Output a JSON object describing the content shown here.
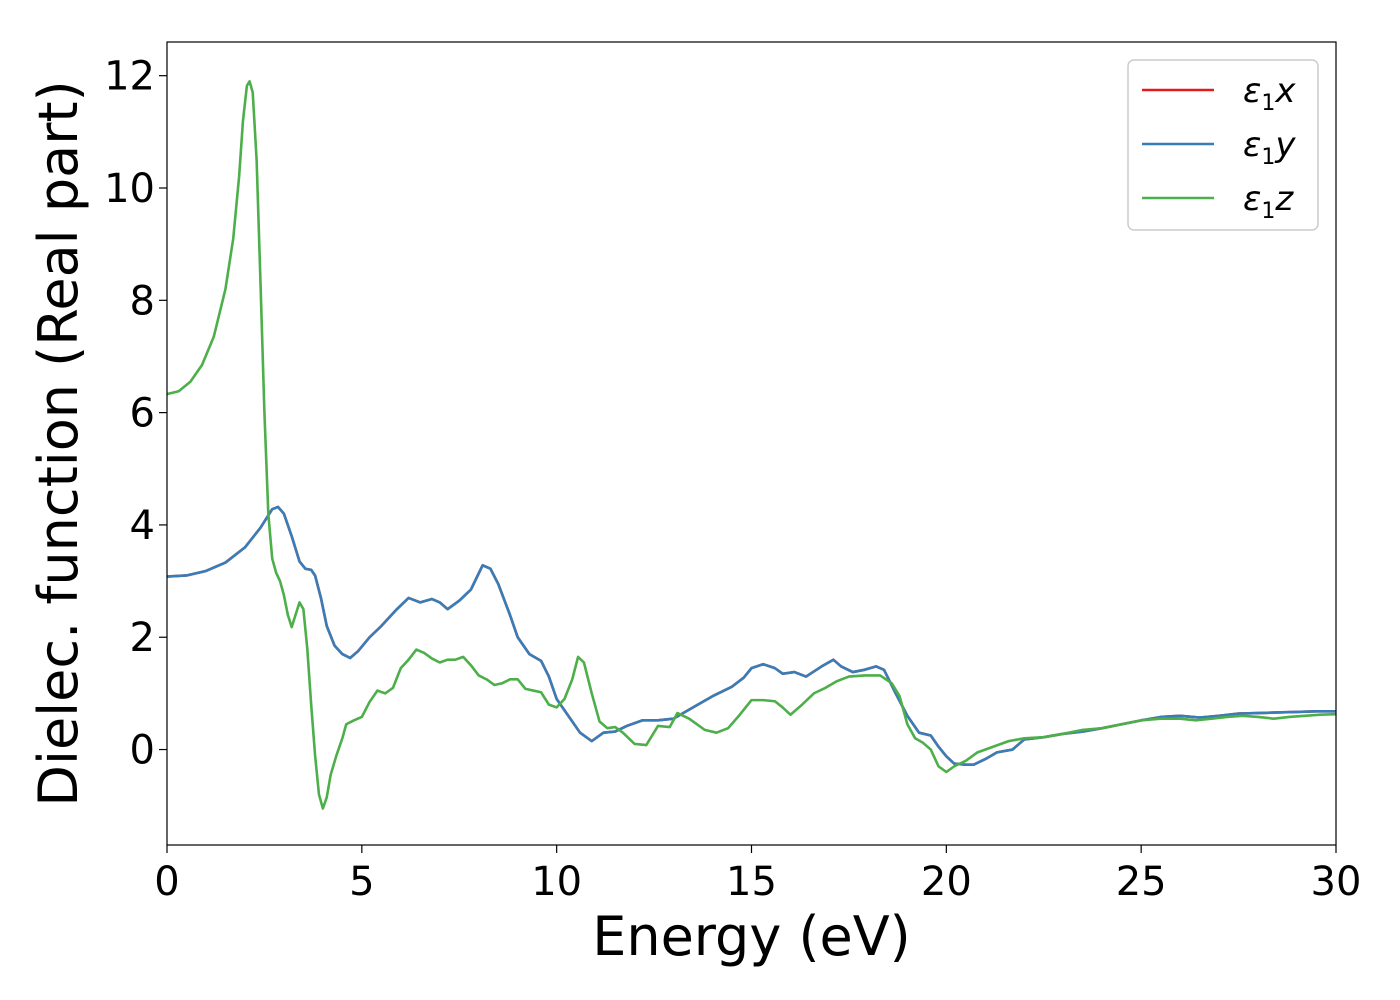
{
  "chart_data": {
    "type": "line",
    "xlabel": "Energy (eV)",
    "ylabel": "Dielec. function (Real part)",
    "xlim": [
      0,
      30
    ],
    "ylim": [
      -1.7,
      12.6
    ],
    "xticks": [
      0,
      5,
      10,
      15,
      20,
      25,
      30
    ],
    "yticks": [
      0,
      2,
      4,
      6,
      8,
      10,
      12
    ],
    "grid": false,
    "legend_position": "top-right",
    "colors": {
      "x": "#e41a1c",
      "y": "#377eb8",
      "z": "#4daf4a"
    },
    "series": [
      {
        "key": "x",
        "name": "ε1x",
        "legend_base": "ε",
        "legend_sub": "1",
        "legend_var": "x",
        "ref": "y"
      },
      {
        "key": "y",
        "name": "ε1y",
        "legend_base": "ε",
        "legend_sub": "1",
        "legend_var": "y",
        "points": [
          [
            0,
            3.08
          ],
          [
            0.5,
            3.1
          ],
          [
            1.0,
            3.18
          ],
          [
            1.5,
            3.33
          ],
          [
            2.0,
            3.6
          ],
          [
            2.4,
            3.95
          ],
          [
            2.7,
            4.28
          ],
          [
            2.85,
            4.32
          ],
          [
            3.0,
            4.2
          ],
          [
            3.2,
            3.8
          ],
          [
            3.4,
            3.35
          ],
          [
            3.55,
            3.22
          ],
          [
            3.7,
            3.2
          ],
          [
            3.8,
            3.1
          ],
          [
            3.95,
            2.7
          ],
          [
            4.1,
            2.2
          ],
          [
            4.3,
            1.85
          ],
          [
            4.5,
            1.7
          ],
          [
            4.7,
            1.63
          ],
          [
            4.9,
            1.75
          ],
          [
            5.2,
            2.0
          ],
          [
            5.5,
            2.2
          ],
          [
            5.9,
            2.5
          ],
          [
            6.2,
            2.7
          ],
          [
            6.5,
            2.62
          ],
          [
            6.8,
            2.68
          ],
          [
            7.0,
            2.62
          ],
          [
            7.2,
            2.5
          ],
          [
            7.5,
            2.65
          ],
          [
            7.8,
            2.85
          ],
          [
            8.1,
            3.28
          ],
          [
            8.3,
            3.22
          ],
          [
            8.5,
            2.95
          ],
          [
            8.8,
            2.4
          ],
          [
            9.0,
            2.0
          ],
          [
            9.3,
            1.7
          ],
          [
            9.6,
            1.58
          ],
          [
            9.8,
            1.3
          ],
          [
            10.0,
            0.9
          ],
          [
            10.3,
            0.6
          ],
          [
            10.6,
            0.3
          ],
          [
            10.9,
            0.15
          ],
          [
            11.2,
            0.3
          ],
          [
            11.5,
            0.32
          ],
          [
            11.8,
            0.42
          ],
          [
            12.2,
            0.52
          ],
          [
            12.6,
            0.52
          ],
          [
            13.0,
            0.55
          ],
          [
            13.5,
            0.75
          ],
          [
            14.0,
            0.95
          ],
          [
            14.5,
            1.12
          ],
          [
            14.8,
            1.28
          ],
          [
            15.0,
            1.45
          ],
          [
            15.3,
            1.52
          ],
          [
            15.6,
            1.45
          ],
          [
            15.8,
            1.35
          ],
          [
            16.1,
            1.38
          ],
          [
            16.4,
            1.3
          ],
          [
            16.8,
            1.48
          ],
          [
            17.1,
            1.6
          ],
          [
            17.3,
            1.48
          ],
          [
            17.6,
            1.38
          ],
          [
            17.9,
            1.42
          ],
          [
            18.2,
            1.48
          ],
          [
            18.4,
            1.42
          ],
          [
            18.7,
            1.0
          ],
          [
            19.0,
            0.6
          ],
          [
            19.3,
            0.3
          ],
          [
            19.6,
            0.25
          ],
          [
            19.8,
            0.05
          ],
          [
            20.0,
            -0.12
          ],
          [
            20.2,
            -0.25
          ],
          [
            20.5,
            -0.27
          ],
          [
            20.7,
            -0.27
          ],
          [
            21.0,
            -0.17
          ],
          [
            21.3,
            -0.05
          ],
          [
            21.7,
            0.0
          ],
          [
            22.0,
            0.18
          ],
          [
            22.5,
            0.22
          ],
          [
            23.0,
            0.28
          ],
          [
            23.5,
            0.32
          ],
          [
            24.0,
            0.38
          ],
          [
            24.5,
            0.45
          ],
          [
            25.0,
            0.52
          ],
          [
            25.5,
            0.58
          ],
          [
            26.0,
            0.6
          ],
          [
            26.5,
            0.57
          ],
          [
            27.0,
            0.6
          ],
          [
            27.5,
            0.64
          ],
          [
            28.0,
            0.65
          ],
          [
            28.5,
            0.66
          ],
          [
            29.0,
            0.67
          ],
          [
            29.5,
            0.68
          ],
          [
            30.0,
            0.68
          ]
        ]
      },
      {
        "key": "z",
        "name": "ε1z",
        "legend_base": "ε",
        "legend_sub": "1",
        "legend_var": "z",
        "points": [
          [
            0,
            6.33
          ],
          [
            0.3,
            6.38
          ],
          [
            0.6,
            6.55
          ],
          [
            0.9,
            6.85
          ],
          [
            1.2,
            7.35
          ],
          [
            1.5,
            8.2
          ],
          [
            1.7,
            9.1
          ],
          [
            1.85,
            10.2
          ],
          [
            1.95,
            11.2
          ],
          [
            2.05,
            11.82
          ],
          [
            2.12,
            11.9
          ],
          [
            2.2,
            11.7
          ],
          [
            2.3,
            10.5
          ],
          [
            2.4,
            8.3
          ],
          [
            2.5,
            6.0
          ],
          [
            2.6,
            4.2
          ],
          [
            2.7,
            3.4
          ],
          [
            2.8,
            3.15
          ],
          [
            2.9,
            3.0
          ],
          [
            3.0,
            2.75
          ],
          [
            3.1,
            2.4
          ],
          [
            3.2,
            2.18
          ],
          [
            3.3,
            2.4
          ],
          [
            3.4,
            2.62
          ],
          [
            3.5,
            2.5
          ],
          [
            3.6,
            1.8
          ],
          [
            3.7,
            0.8
          ],
          [
            3.8,
            -0.1
          ],
          [
            3.9,
            -0.8
          ],
          [
            4.0,
            -1.05
          ],
          [
            4.1,
            -0.85
          ],
          [
            4.2,
            -0.45
          ],
          [
            4.35,
            -0.1
          ],
          [
            4.5,
            0.2
          ],
          [
            4.6,
            0.45
          ],
          [
            4.8,
            0.52
          ],
          [
            5.0,
            0.58
          ],
          [
            5.2,
            0.85
          ],
          [
            5.4,
            1.05
          ],
          [
            5.6,
            1.0
          ],
          [
            5.8,
            1.1
          ],
          [
            6.0,
            1.45
          ],
          [
            6.2,
            1.6
          ],
          [
            6.4,
            1.78
          ],
          [
            6.6,
            1.72
          ],
          [
            6.8,
            1.62
          ],
          [
            7.0,
            1.55
          ],
          [
            7.2,
            1.6
          ],
          [
            7.4,
            1.6
          ],
          [
            7.6,
            1.65
          ],
          [
            7.8,
            1.5
          ],
          [
            8.0,
            1.32
          ],
          [
            8.2,
            1.25
          ],
          [
            8.4,
            1.15
          ],
          [
            8.6,
            1.18
          ],
          [
            8.8,
            1.25
          ],
          [
            9.0,
            1.25
          ],
          [
            9.2,
            1.08
          ],
          [
            9.4,
            1.05
          ],
          [
            9.6,
            1.02
          ],
          [
            9.8,
            0.8
          ],
          [
            10.0,
            0.75
          ],
          [
            10.2,
            0.9
          ],
          [
            10.4,
            1.25
          ],
          [
            10.55,
            1.65
          ],
          [
            10.7,
            1.55
          ],
          [
            10.9,
            1.0
          ],
          [
            11.1,
            0.5
          ],
          [
            11.3,
            0.38
          ],
          [
            11.5,
            0.4
          ],
          [
            11.7,
            0.3
          ],
          [
            12.0,
            0.1
          ],
          [
            12.3,
            0.08
          ],
          [
            12.6,
            0.42
          ],
          [
            12.9,
            0.4
          ],
          [
            13.1,
            0.65
          ],
          [
            13.4,
            0.55
          ],
          [
            13.8,
            0.35
          ],
          [
            14.1,
            0.3
          ],
          [
            14.4,
            0.38
          ],
          [
            14.7,
            0.62
          ],
          [
            15.0,
            0.88
          ],
          [
            15.3,
            0.88
          ],
          [
            15.6,
            0.86
          ],
          [
            15.8,
            0.75
          ],
          [
            16.0,
            0.62
          ],
          [
            16.3,
            0.8
          ],
          [
            16.6,
            1.0
          ],
          [
            16.9,
            1.1
          ],
          [
            17.2,
            1.22
          ],
          [
            17.5,
            1.3
          ],
          [
            17.9,
            1.32
          ],
          [
            18.3,
            1.32
          ],
          [
            18.6,
            1.18
          ],
          [
            18.8,
            0.95
          ],
          [
            19.0,
            0.45
          ],
          [
            19.2,
            0.2
          ],
          [
            19.4,
            0.12
          ],
          [
            19.6,
            0.0
          ],
          [
            19.8,
            -0.3
          ],
          [
            20.0,
            -0.4
          ],
          [
            20.2,
            -0.3
          ],
          [
            20.5,
            -0.2
          ],
          [
            20.8,
            -0.05
          ],
          [
            21.2,
            0.05
          ],
          [
            21.6,
            0.15
          ],
          [
            22.0,
            0.2
          ],
          [
            22.5,
            0.22
          ],
          [
            23.0,
            0.28
          ],
          [
            23.5,
            0.35
          ],
          [
            24.0,
            0.38
          ],
          [
            24.5,
            0.45
          ],
          [
            25.0,
            0.52
          ],
          [
            25.5,
            0.55
          ],
          [
            26.0,
            0.55
          ],
          [
            26.4,
            0.52
          ],
          [
            26.8,
            0.55
          ],
          [
            27.2,
            0.58
          ],
          [
            27.6,
            0.6
          ],
          [
            28.0,
            0.58
          ],
          [
            28.4,
            0.55
          ],
          [
            28.8,
            0.58
          ],
          [
            29.2,
            0.6
          ],
          [
            29.6,
            0.62
          ],
          [
            30.0,
            0.63
          ]
        ]
      }
    ]
  }
}
